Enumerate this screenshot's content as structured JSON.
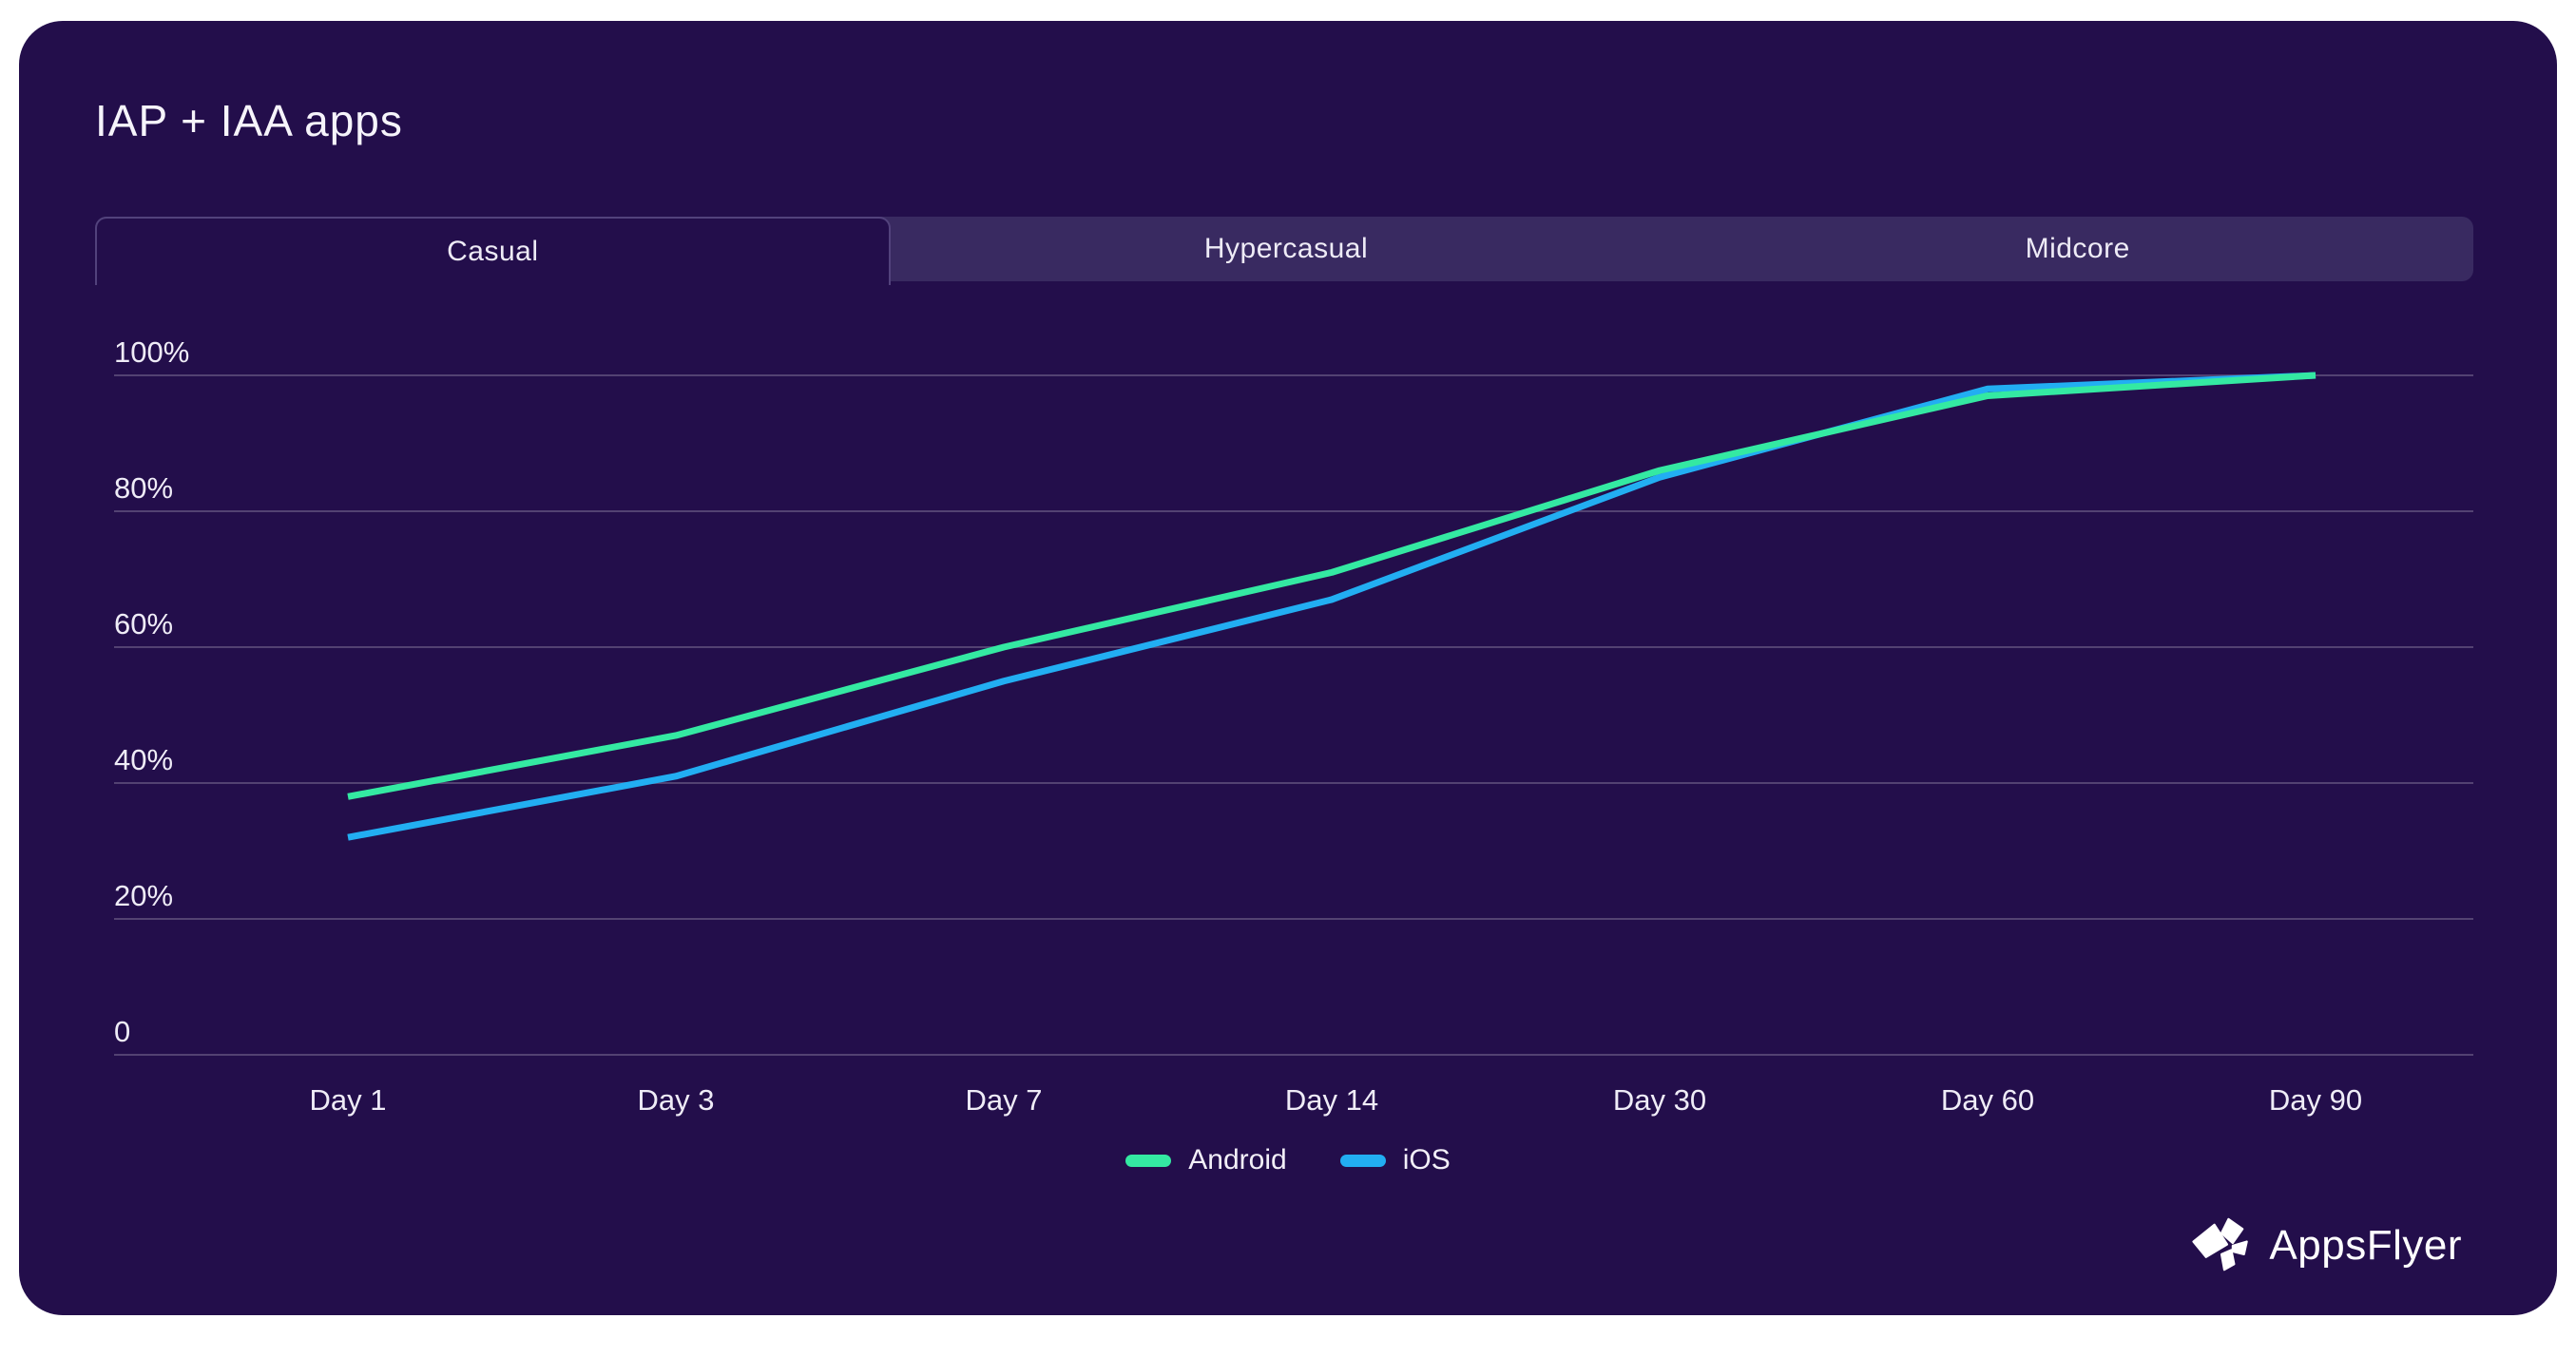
{
  "page": {
    "background_color": "#ffffff",
    "card_color": "#230e4b",
    "tabbar_color": "#392a61",
    "gridline_color": "rgba(255,255,255,0.22)",
    "axis_label_color": "#efecf7"
  },
  "header": {
    "title": "IAP + IAA apps"
  },
  "tabs": [
    {
      "label": "Casual",
      "active": true
    },
    {
      "label": "Hypercasual",
      "active": false
    },
    {
      "label": "Midcore",
      "active": false
    }
  ],
  "legend": [
    {
      "label": "Android",
      "color": "#34e9a2"
    },
    {
      "label": "iOS",
      "color": "#22aef2"
    }
  ],
  "footer": {
    "logo_text": "AppsFlyer",
    "logo_icon": "appsflyer-pinwheel-icon"
  },
  "chart_data": {
    "type": "line",
    "title": "IAP + IAA apps",
    "active_segment": "Casual",
    "categories": [
      "Day 1",
      "Day 3",
      "Day 7",
      "Day 14",
      "Day 30",
      "Day 60",
      "Day 90"
    ],
    "series": [
      {
        "name": "Android",
        "color": "#34e9a2",
        "values": [
          38,
          47,
          60,
          71,
          86,
          97,
          100
        ]
      },
      {
        "name": "iOS",
        "color": "#22aef2",
        "values": [
          32,
          41,
          55,
          67,
          85,
          98,
          100
        ]
      }
    ],
    "y_ticks": [
      {
        "label": "0",
        "value": 0
      },
      {
        "label": "20%",
        "value": 20
      },
      {
        "label": "40%",
        "value": 40
      },
      {
        "label": "60%",
        "value": 60
      },
      {
        "label": "80%",
        "value": 80
      },
      {
        "label": "100%",
        "value": 100
      }
    ],
    "xlabel": "",
    "ylabel": "",
    "unit": "%",
    "ylim": [
      0,
      100
    ],
    "grid": true,
    "legend_position": "bottom"
  }
}
